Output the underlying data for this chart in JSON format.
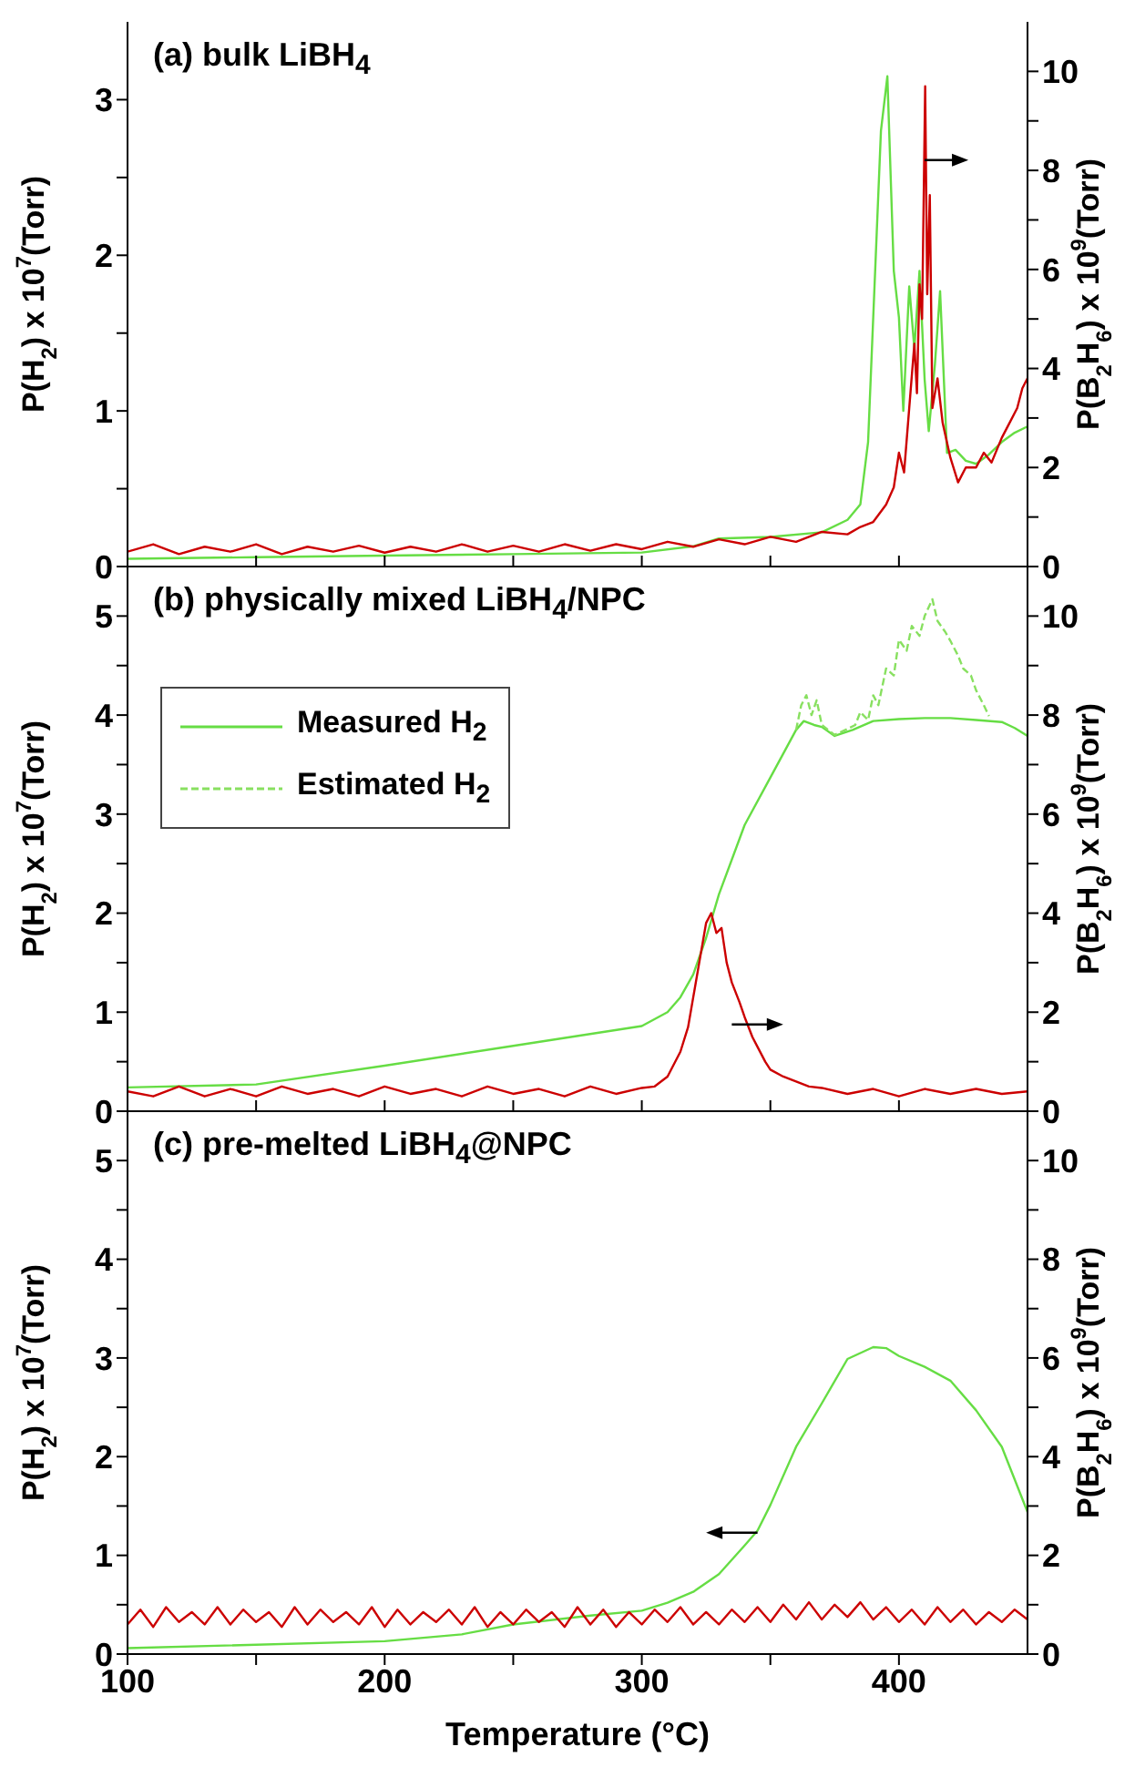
{
  "chart_data": [
    {
      "type": "line",
      "title": "(a) bulk LiBH$_{4}$",
      "ylabel": "P(H$_{2}$) x 10$^{7}$(Torr)",
      "y2label": "P(B$_{2}$H$_{6}$) x 10$^{9}$(Torr)",
      "xlim": [
        100,
        450
      ],
      "xticks": [
        100,
        {
          "value": 150,
          "label": null
        },
        200,
        {
          "value": 250,
          "label": null
        },
        300,
        {
          "value": 350,
          "label": null
        },
        400
      ],
      "ylim": [
        0,
        3.5
      ],
      "yticks": [
        0,
        {
          "value": 0.5,
          "label": null
        },
        1,
        {
          "value": 1.5,
          "label": null
        },
        2,
        {
          "value": 2.5,
          "label": null
        },
        3
      ],
      "y2lim": [
        0,
        11
      ],
      "y2ticks": [
        0,
        {
          "value": 1,
          "label": null
        },
        2,
        {
          "value": 3,
          "label": null
        },
        4,
        {
          "value": 5,
          "label": null
        },
        6,
        {
          "value": 7,
          "label": null
        },
        8,
        {
          "value": 9,
          "label": null
        },
        10
      ],
      "tick_labels": "y",
      "series": [
        {
          "color": "#66dd44",
          "x": [
            100,
            150,
            200,
            250,
            300,
            320,
            330,
            350,
            370,
            380,
            385,
            388,
            391,
            393,
            395.5,
            397,
            398,
            400,
            401.7,
            404,
            406,
            408,
            410,
            411.6,
            414,
            416,
            418.7,
            422,
            426,
            430,
            435,
            440,
            445,
            450
          ],
          "values": [
            0.05,
            0.06,
            0.07,
            0.08,
            0.09,
            0.13,
            0.18,
            0.19,
            0.22,
            0.3,
            0.4,
            0.8,
            2.0,
            2.8,
            3.15,
            2.4,
            1.9,
            1.6,
            1.0,
            1.8,
            1.4,
            1.9,
            1.2,
            0.87,
            1.3,
            1.77,
            0.73,
            0.75,
            0.68,
            0.66,
            0.72,
            0.8,
            0.86,
            0.9
          ]
        },
        {
          "color": "#cc0000",
          "axis": "y2",
          "x": [
            100,
            110,
            120,
            130,
            140,
            150,
            160,
            170,
            180,
            190,
            200,
            210,
            220,
            230,
            240,
            250,
            260,
            270,
            280,
            290,
            300,
            310,
            320,
            330,
            340,
            350,
            360,
            370,
            380,
            385,
            390,
            395,
            398,
            400,
            402,
            404,
            406,
            407,
            408,
            409,
            410.2,
            411,
            412,
            413,
            415,
            417,
            420,
            423,
            426,
            430,
            433,
            436,
            440,
            443,
            446,
            448,
            450
          ],
          "values": [
            0.3,
            0.45,
            0.25,
            0.4,
            0.3,
            0.45,
            0.25,
            0.4,
            0.3,
            0.42,
            0.28,
            0.4,
            0.3,
            0.45,
            0.3,
            0.42,
            0.3,
            0.45,
            0.32,
            0.45,
            0.35,
            0.5,
            0.4,
            0.55,
            0.45,
            0.6,
            0.5,
            0.7,
            0.65,
            0.8,
            0.9,
            1.25,
            1.6,
            2.3,
            1.9,
            3.2,
            4.5,
            3.5,
            5.7,
            5.0,
            9.7,
            5.5,
            7.5,
            3.2,
            3.8,
            2.9,
            2.2,
            1.7,
            2.0,
            2.0,
            2.3,
            2.1,
            2.6,
            2.9,
            3.2,
            3.6,
            3.8
          ]
        }
      ]
    },
    {
      "type": "line",
      "title": "(b) physically mixed LiBH$_{4}$/NPC",
      "ylabel": "P(H$_{2}$) x 10$^{7}$(Torr)",
      "y2label": "P(B$_{2}$H$_{6}$) x 10$^{9}$(Torr)",
      "xlim": [
        100,
        450
      ],
      "xticks": [
        100,
        {
          "value": 150,
          "label": null
        },
        200,
        {
          "value": 250,
          "label": null
        },
        300,
        {
          "value": 350,
          "label": null
        },
        400
      ],
      "ylim": [
        0,
        5.5
      ],
      "yticks": [
        0,
        {
          "value": 0.5,
          "label": null
        },
        1,
        {
          "value": 1.5,
          "label": null
        },
        2,
        {
          "value": 2.5,
          "label": null
        },
        3,
        {
          "value": 3.5,
          "label": null
        },
        4,
        {
          "value": 4.5,
          "label": null
        },
        5
      ],
      "y2lim": [
        0,
        11
      ],
      "y2ticks": [
        0,
        {
          "value": 1,
          "label": null
        },
        2,
        {
          "value": 3,
          "label": null
        },
        4,
        {
          "value": 5,
          "label": null
        },
        6,
        {
          "value": 7,
          "label": null
        },
        8,
        {
          "value": 9,
          "label": null
        },
        10
      ],
      "tick_labels": "y",
      "legend": "top left",
      "series": [
        {
          "name": "Measured H$_{2}$",
          "color": "#66dd44",
          "x": [
            100,
            150,
            200,
            250,
            300,
            310,
            315,
            320,
            325,
            330,
            340,
            350,
            360,
            363,
            367,
            370,
            375,
            382,
            390,
            400,
            410,
            420,
            430,
            440,
            445,
            450
          ],
          "values": [
            0.24,
            0.27,
            0.46,
            0.66,
            0.86,
            1.0,
            1.15,
            1.38,
            1.75,
            2.19,
            2.89,
            3.37,
            3.85,
            3.94,
            3.9,
            3.88,
            3.79,
            3.85,
            3.94,
            3.96,
            3.97,
            3.97,
            3.95,
            3.93,
            3.87,
            3.79
          ]
        },
        {
          "name": "Estimated H$_{2}$",
          "color": "#88e060",
          "line_style": "dashed",
          "x": [
            360,
            362,
            364,
            366,
            368,
            370,
            375,
            380,
            383,
            385,
            388,
            390,
            392,
            395,
            398,
            400,
            403,
            405,
            408,
            410,
            413,
            415,
            418,
            420,
            423,
            425,
            428,
            430,
            433,
            435
          ],
          "values": [
            3.85,
            4.1,
            4.2,
            4.0,
            4.15,
            3.9,
            3.8,
            3.86,
            3.9,
            4.03,
            3.95,
            4.2,
            4.1,
            4.47,
            4.4,
            4.76,
            4.65,
            4.9,
            4.8,
            5.0,
            5.17,
            4.95,
            4.84,
            4.75,
            4.6,
            4.47,
            4.4,
            4.25,
            4.1,
            3.99
          ]
        },
        {
          "color": "#cc0000",
          "axis": "y2",
          "x": [
            100,
            110,
            120,
            130,
            140,
            150,
            160,
            170,
            180,
            190,
            200,
            210,
            220,
            230,
            240,
            250,
            260,
            270,
            280,
            290,
            300,
            305,
            310,
            315,
            318,
            322,
            325,
            327,
            329,
            331,
            333,
            335,
            338,
            340,
            343,
            345,
            348,
            350,
            355,
            360,
            365,
            370,
            380,
            390,
            400,
            410,
            420,
            430,
            440,
            450
          ],
          "values": [
            0.4,
            0.3,
            0.5,
            0.3,
            0.45,
            0.3,
            0.5,
            0.35,
            0.45,
            0.3,
            0.5,
            0.35,
            0.45,
            0.3,
            0.5,
            0.35,
            0.45,
            0.3,
            0.5,
            0.35,
            0.47,
            0.5,
            0.7,
            1.2,
            1.7,
            2.9,
            3.8,
            4.0,
            3.6,
            3.7,
            3.0,
            2.6,
            2.2,
            1.9,
            1.5,
            1.3,
            1.0,
            0.84,
            0.7,
            0.6,
            0.5,
            0.47,
            0.35,
            0.45,
            0.3,
            0.45,
            0.35,
            0.45,
            0.35,
            0.4
          ]
        }
      ]
    },
    {
      "type": "line",
      "title": "(c) pre-melted LiBH$_{4}$@NPC",
      "xlabel": "Temperature (°C)",
      "ylabel": "P(H$_{2}$) x 10$^{7}$(Torr)",
      "y2label": "P(B$_{2}$H$_{6}$) x 10$^{9}$(Torr)",
      "xlim": [
        100,
        450
      ],
      "xticks": [
        100,
        {
          "value": 150,
          "label": null
        },
        200,
        {
          "value": 250,
          "label": null
        },
        300,
        {
          "value": 350,
          "label": null
        },
        400
      ],
      "ylim": [
        0,
        5.5
      ],
      "yticks": [
        0,
        {
          "value": 0.5,
          "label": null
        },
        1,
        {
          "value": 1.5,
          "label": null
        },
        2,
        {
          "value": 2.5,
          "label": null
        },
        3,
        {
          "value": 3.5,
          "label": null
        },
        4,
        {
          "value": 4.5,
          "label": null
        },
        5
      ],
      "y2lim": [
        0,
        11
      ],
      "y2ticks": [
        0,
        {
          "value": 1,
          "label": null
        },
        2,
        {
          "value": 3,
          "label": null
        },
        4,
        {
          "value": 5,
          "label": null
        },
        6,
        {
          "value": 7,
          "label": null
        },
        8,
        {
          "value": 9,
          "label": null
        },
        10
      ],
      "series": [
        {
          "color": "#66dd44",
          "x": [
            100,
            200,
            230,
            250,
            280,
            300,
            310,
            320,
            330,
            340,
            345,
            350,
            360,
            370,
            380,
            390,
            395,
            400,
            410,
            420,
            430,
            440,
            450
          ],
          "values": [
            0.06,
            0.13,
            0.2,
            0.3,
            0.39,
            0.44,
            0.52,
            0.63,
            0.81,
            1.1,
            1.25,
            1.51,
            2.1,
            2.54,
            2.99,
            3.11,
            3.1,
            3.02,
            2.91,
            2.77,
            2.47,
            2.1,
            1.44
          ]
        },
        {
          "color": "#cc0000",
          "axis": "y2",
          "x": [
            100,
            105,
            110,
            115,
            120,
            125,
            130,
            135,
            140,
            145,
            150,
            155,
            160,
            165,
            170,
            175,
            180,
            185,
            190,
            195,
            200,
            205,
            210,
            215,
            220,
            225,
            230,
            235,
            240,
            245,
            250,
            255,
            260,
            265,
            270,
            275,
            280,
            285,
            290,
            295,
            300,
            305,
            310,
            315,
            320,
            325,
            330,
            335,
            340,
            345,
            350,
            355,
            360,
            365,
            370,
            375,
            380,
            385,
            390,
            395,
            400,
            405,
            410,
            415,
            420,
            425,
            430,
            435,
            440,
            445,
            450
          ],
          "values": [
            0.6,
            0.9,
            0.55,
            0.95,
            0.65,
            0.85,
            0.6,
            0.95,
            0.6,
            0.9,
            0.65,
            0.85,
            0.55,
            0.95,
            0.6,
            0.9,
            0.65,
            0.85,
            0.6,
            0.95,
            0.55,
            0.9,
            0.6,
            0.85,
            0.65,
            0.9,
            0.6,
            0.95,
            0.55,
            0.85,
            0.6,
            0.9,
            0.65,
            0.85,
            0.55,
            0.95,
            0.6,
            0.9,
            0.55,
            0.85,
            0.6,
            0.9,
            0.65,
            0.95,
            0.6,
            0.85,
            0.6,
            0.9,
            0.65,
            0.95,
            0.65,
            1.0,
            0.7,
            1.05,
            0.7,
            1.0,
            0.75,
            1.05,
            0.7,
            0.95,
            0.65,
            0.9,
            0.6,
            0.95,
            0.65,
            0.9,
            0.6,
            0.85,
            0.65,
            0.9,
            0.7
          ]
        }
      ]
    }
  ]
}
